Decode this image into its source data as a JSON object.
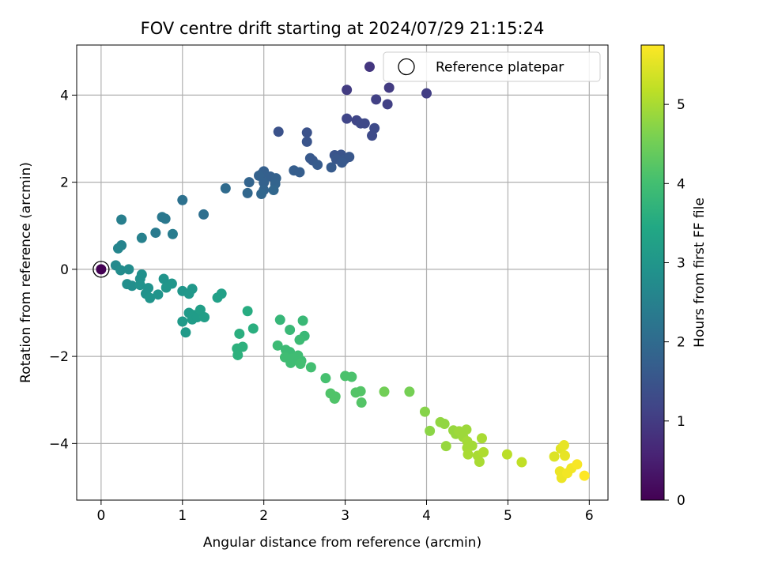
{
  "chart_data": {
    "type": "scatter",
    "title": "FOV centre drift starting at 2024/07/29 21:15:24",
    "xlabel": "Angular distance from reference (arcmin)",
    "ylabel": "Rotation from reference (arcmin)",
    "xlim": [
      -0.3,
      6.23
    ],
    "ylim": [
      -5.3,
      5.15
    ],
    "xticks": [
      0,
      1,
      2,
      3,
      4,
      5,
      6
    ],
    "yticks": [
      -4,
      -2,
      0,
      2,
      4
    ],
    "grid": true,
    "legend": {
      "placement": "top-right",
      "entries": [
        "Reference platepar"
      ]
    },
    "reference_point": {
      "x": 0,
      "y": 0,
      "label": "Reference platepar"
    },
    "colorbar": {
      "label": "Hours from first FF file",
      "colormap": "viridis",
      "range": [
        0,
        5.75
      ],
      "ticks": [
        0,
        1,
        2,
        3,
        4,
        5
      ]
    },
    "points": [
      {
        "x": 0.0,
        "y": 0.0,
        "h": 0.0
      },
      {
        "x": 3.3,
        "y": 4.65,
        "h": 0.9
      },
      {
        "x": 3.02,
        "y": 4.12,
        "h": 1.0
      },
      {
        "x": 3.54,
        "y": 4.17,
        "h": 1.0
      },
      {
        "x": 4.0,
        "y": 4.04,
        "h": 1.05
      },
      {
        "x": 3.38,
        "y": 3.9,
        "h": 1.1
      },
      {
        "x": 3.52,
        "y": 3.79,
        "h": 1.1
      },
      {
        "x": 3.02,
        "y": 3.46,
        "h": 1.2
      },
      {
        "x": 3.14,
        "y": 3.42,
        "h": 1.2
      },
      {
        "x": 3.19,
        "y": 3.35,
        "h": 1.25
      },
      {
        "x": 3.24,
        "y": 3.35,
        "h": 1.25
      },
      {
        "x": 3.36,
        "y": 3.24,
        "h": 1.3
      },
      {
        "x": 3.33,
        "y": 3.07,
        "h": 1.3
      },
      {
        "x": 2.18,
        "y": 3.16,
        "h": 1.45
      },
      {
        "x": 2.53,
        "y": 3.14,
        "h": 1.45
      },
      {
        "x": 2.53,
        "y": 2.93,
        "h": 1.5
      },
      {
        "x": 2.87,
        "y": 2.62,
        "h": 1.5
      },
      {
        "x": 2.95,
        "y": 2.63,
        "h": 1.5
      },
      {
        "x": 2.99,
        "y": 2.52,
        "h": 1.55
      },
      {
        "x": 3.05,
        "y": 2.58,
        "h": 1.55
      },
      {
        "x": 2.89,
        "y": 2.53,
        "h": 1.55
      },
      {
        "x": 2.96,
        "y": 2.45,
        "h": 1.6
      },
      {
        "x": 2.57,
        "y": 2.55,
        "h": 1.6
      },
      {
        "x": 2.6,
        "y": 2.5,
        "h": 1.6
      },
      {
        "x": 2.66,
        "y": 2.4,
        "h": 1.65
      },
      {
        "x": 2.83,
        "y": 2.34,
        "h": 1.65
      },
      {
        "x": 2.37,
        "y": 2.27,
        "h": 1.7
      },
      {
        "x": 2.44,
        "y": 2.23,
        "h": 1.7
      },
      {
        "x": 1.98,
        "y": 2.2,
        "h": 1.75
      },
      {
        "x": 2.0,
        "y": 2.25,
        "h": 1.75
      },
      {
        "x": 2.08,
        "y": 2.13,
        "h": 1.75
      },
      {
        "x": 2.15,
        "y": 2.09,
        "h": 1.8
      },
      {
        "x": 1.94,
        "y": 2.15,
        "h": 1.8
      },
      {
        "x": 2.0,
        "y": 1.99,
        "h": 1.8
      },
      {
        "x": 2.14,
        "y": 1.96,
        "h": 1.85
      },
      {
        "x": 1.82,
        "y": 2.0,
        "h": 1.85
      },
      {
        "x": 2.0,
        "y": 1.82,
        "h": 1.85
      },
      {
        "x": 2.12,
        "y": 1.82,
        "h": 1.9
      },
      {
        "x": 1.8,
        "y": 1.75,
        "h": 1.9
      },
      {
        "x": 1.97,
        "y": 1.73,
        "h": 1.9
      },
      {
        "x": 1.53,
        "y": 1.86,
        "h": 2.0
      },
      {
        "x": 1.26,
        "y": 1.26,
        "h": 2.1
      },
      {
        "x": 1.0,
        "y": 1.59,
        "h": 2.15
      },
      {
        "x": 0.75,
        "y": 1.2,
        "h": 2.3
      },
      {
        "x": 0.79,
        "y": 1.16,
        "h": 2.3
      },
      {
        "x": 0.67,
        "y": 0.84,
        "h": 2.35
      },
      {
        "x": 0.88,
        "y": 0.81,
        "h": 2.4
      },
      {
        "x": 0.25,
        "y": 1.14,
        "h": 2.45
      },
      {
        "x": 0.5,
        "y": 0.72,
        "h": 2.5
      },
      {
        "x": 0.25,
        "y": 0.55,
        "h": 2.55
      },
      {
        "x": 0.21,
        "y": 0.48,
        "h": 2.6
      },
      {
        "x": 0.18,
        "y": 0.09,
        "h": 2.7
      },
      {
        "x": 0.24,
        "y": -0.02,
        "h": 2.75
      },
      {
        "x": 0.34,
        "y": 0.0,
        "h": 2.75
      },
      {
        "x": 0.32,
        "y": -0.34,
        "h": 2.8
      },
      {
        "x": 0.38,
        "y": -0.38,
        "h": 2.8
      },
      {
        "x": 0.5,
        "y": -0.12,
        "h": 2.85
      },
      {
        "x": 0.48,
        "y": -0.22,
        "h": 2.85
      },
      {
        "x": 0.48,
        "y": -0.36,
        "h": 2.9
      },
      {
        "x": 0.58,
        "y": -0.43,
        "h": 2.9
      },
      {
        "x": 0.55,
        "y": -0.56,
        "h": 2.9
      },
      {
        "x": 0.6,
        "y": -0.66,
        "h": 2.95
      },
      {
        "x": 0.7,
        "y": -0.58,
        "h": 2.95
      },
      {
        "x": 0.77,
        "y": -0.22,
        "h": 2.95
      },
      {
        "x": 0.87,
        "y": -0.33,
        "h": 3.0
      },
      {
        "x": 0.8,
        "y": -0.42,
        "h": 3.0
      },
      {
        "x": 1.0,
        "y": -0.5,
        "h": 3.0
      },
      {
        "x": 1.08,
        "y": -0.56,
        "h": 3.05
      },
      {
        "x": 1.12,
        "y": -0.45,
        "h": 3.05
      },
      {
        "x": 1.0,
        "y": -1.2,
        "h": 3.1
      },
      {
        "x": 1.04,
        "y": -1.45,
        "h": 3.1
      },
      {
        "x": 1.08,
        "y": -1.0,
        "h": 3.1
      },
      {
        "x": 1.14,
        "y": -1.05,
        "h": 3.15
      },
      {
        "x": 1.12,
        "y": -1.15,
        "h": 3.15
      },
      {
        "x": 1.18,
        "y": -1.1,
        "h": 3.15
      },
      {
        "x": 1.22,
        "y": -0.93,
        "h": 3.2
      },
      {
        "x": 1.27,
        "y": -1.1,
        "h": 3.2
      },
      {
        "x": 1.43,
        "y": -0.65,
        "h": 3.25
      },
      {
        "x": 1.48,
        "y": -0.56,
        "h": 3.25
      },
      {
        "x": 1.8,
        "y": -0.96,
        "h": 3.55
      },
      {
        "x": 1.87,
        "y": -1.36,
        "h": 3.6
      },
      {
        "x": 1.7,
        "y": -1.48,
        "h": 3.6
      },
      {
        "x": 1.67,
        "y": -1.82,
        "h": 3.65
      },
      {
        "x": 1.74,
        "y": -1.78,
        "h": 3.65
      },
      {
        "x": 1.68,
        "y": -1.97,
        "h": 3.65
      },
      {
        "x": 2.2,
        "y": -1.16,
        "h": 3.8
      },
      {
        "x": 2.48,
        "y": -1.18,
        "h": 3.85
      },
      {
        "x": 2.32,
        "y": -1.39,
        "h": 3.85
      },
      {
        "x": 2.5,
        "y": -1.53,
        "h": 3.85
      },
      {
        "x": 2.44,
        "y": -1.62,
        "h": 3.9
      },
      {
        "x": 2.17,
        "y": -1.75,
        "h": 3.9
      },
      {
        "x": 2.27,
        "y": -1.85,
        "h": 3.9
      },
      {
        "x": 2.32,
        "y": -1.9,
        "h": 3.9
      },
      {
        "x": 2.26,
        "y": -2.02,
        "h": 3.95
      },
      {
        "x": 2.35,
        "y": -2.05,
        "h": 3.95
      },
      {
        "x": 2.42,
        "y": -1.98,
        "h": 3.95
      },
      {
        "x": 2.46,
        "y": -2.1,
        "h": 3.95
      },
      {
        "x": 2.33,
        "y": -2.15,
        "h": 3.95
      },
      {
        "x": 2.45,
        "y": -2.17,
        "h": 4.0
      },
      {
        "x": 2.58,
        "y": -2.25,
        "h": 4.0
      },
      {
        "x": 2.76,
        "y": -2.5,
        "h": 4.05
      },
      {
        "x": 3.0,
        "y": -2.45,
        "h": 4.1
      },
      {
        "x": 3.08,
        "y": -2.47,
        "h": 4.1
      },
      {
        "x": 2.82,
        "y": -2.85,
        "h": 4.15
      },
      {
        "x": 2.87,
        "y": -2.97,
        "h": 4.15
      },
      {
        "x": 2.88,
        "y": -2.92,
        "h": 4.15
      },
      {
        "x": 3.13,
        "y": -2.83,
        "h": 4.2
      },
      {
        "x": 3.19,
        "y": -2.8,
        "h": 4.2
      },
      {
        "x": 3.2,
        "y": -3.06,
        "h": 4.2
      },
      {
        "x": 3.48,
        "y": -2.81,
        "h": 4.5
      },
      {
        "x": 3.79,
        "y": -2.81,
        "h": 4.55
      },
      {
        "x": 3.98,
        "y": -3.27,
        "h": 4.7
      },
      {
        "x": 4.04,
        "y": -3.71,
        "h": 4.75
      },
      {
        "x": 4.17,
        "y": -3.51,
        "h": 4.8
      },
      {
        "x": 4.22,
        "y": -3.55,
        "h": 4.8
      },
      {
        "x": 4.24,
        "y": -4.06,
        "h": 4.85
      },
      {
        "x": 4.33,
        "y": -3.7,
        "h": 4.85
      },
      {
        "x": 4.36,
        "y": -3.78,
        "h": 4.85
      },
      {
        "x": 4.4,
        "y": -3.72,
        "h": 4.9
      },
      {
        "x": 4.49,
        "y": -3.68,
        "h": 4.9
      },
      {
        "x": 4.45,
        "y": -3.85,
        "h": 4.9
      },
      {
        "x": 4.5,
        "y": -3.95,
        "h": 4.95
      },
      {
        "x": 4.5,
        "y": -4.1,
        "h": 4.95
      },
      {
        "x": 4.56,
        "y": -4.05,
        "h": 4.95
      },
      {
        "x": 4.51,
        "y": -4.25,
        "h": 5.0
      },
      {
        "x": 4.63,
        "y": -4.28,
        "h": 5.0
      },
      {
        "x": 4.65,
        "y": -4.42,
        "h": 5.0
      },
      {
        "x": 4.68,
        "y": -3.88,
        "h": 5.0
      },
      {
        "x": 4.7,
        "y": -4.2,
        "h": 5.05
      },
      {
        "x": 4.99,
        "y": -4.25,
        "h": 5.15
      },
      {
        "x": 5.17,
        "y": -4.43,
        "h": 5.2
      },
      {
        "x": 5.57,
        "y": -4.3,
        "h": 5.45
      },
      {
        "x": 5.65,
        "y": -4.12,
        "h": 5.5
      },
      {
        "x": 5.69,
        "y": -4.04,
        "h": 5.55
      },
      {
        "x": 5.7,
        "y": -4.28,
        "h": 5.55
      },
      {
        "x": 5.64,
        "y": -4.64,
        "h": 5.6
      },
      {
        "x": 5.66,
        "y": -4.79,
        "h": 5.6
      },
      {
        "x": 5.73,
        "y": -4.68,
        "h": 5.65
      },
      {
        "x": 5.78,
        "y": -4.57,
        "h": 5.65
      },
      {
        "x": 5.85,
        "y": -4.48,
        "h": 5.7
      },
      {
        "x": 5.94,
        "y": -4.74,
        "h": 5.75
      }
    ]
  }
}
